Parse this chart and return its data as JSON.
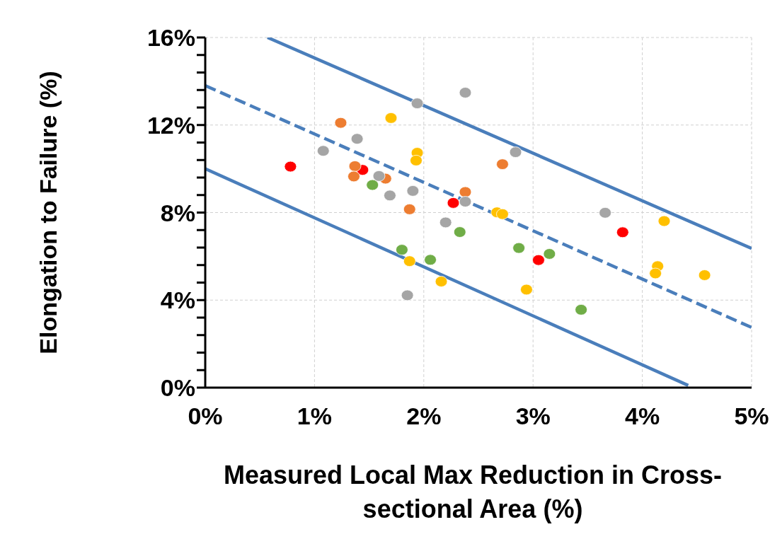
{
  "chart_data": {
    "type": "scatter",
    "xlabel": "Measured Local Max Reduction in Cross-sectional Area (%)",
    "ylabel": "Elongation to Failure (%)",
    "xlim": [
      0,
      5
    ],
    "xticks": [
      {
        "value": 0,
        "label": "0%"
      },
      {
        "value": 1,
        "label": "1%"
      },
      {
        "value": 2,
        "label": "2%"
      },
      {
        "value": 3,
        "label": "3%"
      },
      {
        "value": 4,
        "label": "4%"
      },
      {
        "value": 5,
        "label": "5%"
      }
    ],
    "ylim": [
      0,
      16
    ],
    "yticks": [
      {
        "value": 0,
        "label": "0%"
      },
      {
        "value": 0.8,
        "label": null
      },
      {
        "value": 1.6,
        "label": null
      },
      {
        "value": 2.4,
        "label": null
      },
      {
        "value": 3.2,
        "label": null
      },
      {
        "value": 4,
        "label": "4%"
      },
      {
        "value": 4.8,
        "label": null
      },
      {
        "value": 5.6,
        "label": null
      },
      {
        "value": 6.4,
        "label": null
      },
      {
        "value": 7.2,
        "label": null
      },
      {
        "value": 8,
        "label": "8%"
      },
      {
        "value": 8.8,
        "label": null
      },
      {
        "value": 9.6,
        "label": null
      },
      {
        "value": 10.4,
        "label": null
      },
      {
        "value": 11.2,
        "label": null
      },
      {
        "value": 12,
        "label": "12%"
      },
      {
        "value": 12.8,
        "label": null
      },
      {
        "value": 13.6,
        "label": null
      },
      {
        "value": 14.4,
        "label": null
      },
      {
        "value": 15.2,
        "label": null
      },
      {
        "value": 16,
        "label": "16%"
      }
    ],
    "grid": true,
    "legend": false,
    "marker": "circle",
    "series": [
      {
        "color": "#ff0000",
        "x": [
          0.78,
          1.44,
          2.27,
          3.05,
          3.82
        ],
        "values": [
          10.1,
          9.95,
          8.44,
          5.83,
          7.1
        ]
      },
      {
        "color": "#ed7d31",
        "x": [
          1.24,
          1.37,
          1.36,
          1.65,
          1.87,
          2.38,
          2.72
        ],
        "values": [
          12.1,
          10.12,
          9.65,
          9.55,
          8.15,
          8.94,
          10.21
        ]
      },
      {
        "color": "#a5a5a5",
        "x": [
          1.08,
          1.39,
          1.59,
          1.69,
          1.9,
          1.94,
          2.38,
          2.38,
          2.2,
          1.85,
          2.84,
          3.66
        ],
        "values": [
          10.82,
          11.37,
          9.67,
          8.78,
          8.99,
          12.99,
          13.48,
          8.5,
          7.55,
          4.22,
          10.76,
          7.99
        ]
      },
      {
        "color": "#ffc000",
        "x": [
          1.7,
          1.94,
          1.93,
          1.87,
          2.16,
          2.67,
          2.72,
          2.94,
          4.2,
          4.14,
          4.12,
          4.57
        ],
        "values": [
          12.32,
          10.73,
          10.38,
          5.78,
          4.85,
          8.01,
          7.93,
          4.48,
          7.61,
          5.55,
          5.22,
          5.14
        ]
      },
      {
        "color": "#70ad47",
        "x": [
          1.53,
          1.8,
          2.06,
          2.33,
          2.87,
          3.15,
          3.44
        ],
        "values": [
          9.26,
          6.3,
          5.84,
          7.11,
          6.38,
          6.11,
          3.56
        ]
      },
      {
        "type": "line",
        "color": "#4a7ebb",
        "marker": "none",
        "line_style": "solid",
        "x": [
          0.57,
          5
        ],
        "values": [
          16,
          6.36
        ]
      },
      {
        "type": "line",
        "color": "#4a7ebb",
        "marker": "none",
        "line_style": "dashed",
        "x": [
          0,
          5
        ],
        "values": [
          13.8,
          2.75
        ]
      },
      {
        "type": "line",
        "color": "#4a7ebb",
        "marker": "none",
        "line_style": "solid",
        "x": [
          0,
          4.42
        ],
        "values": [
          10.0,
          0.1
        ]
      }
    ]
  }
}
